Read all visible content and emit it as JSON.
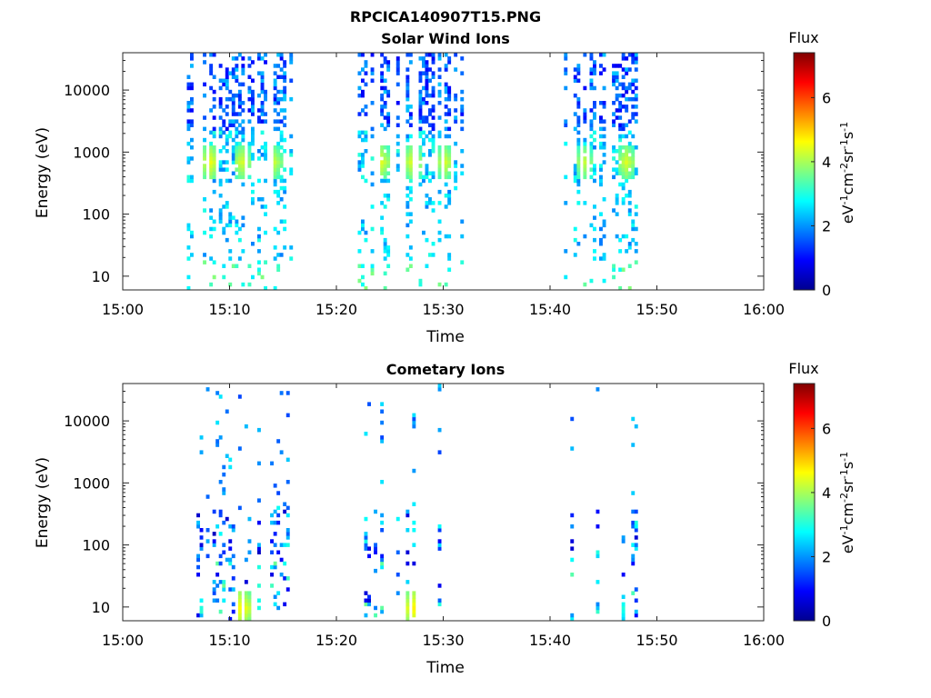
{
  "figure_title": "RPCICA140907T15.PNG",
  "colors": {
    "colormap": [
      "#00008f",
      "#0000ff",
      "#0080ff",
      "#00ffff",
      "#80ff80",
      "#ffff00",
      "#ff8000",
      "#ff0000",
      "#800000"
    ]
  },
  "chart_data": [
    {
      "type": "heatmap",
      "title": "Solar Wind Ions",
      "xlabel": "Time",
      "ylabel": "Energy (eV)",
      "x_ticks": [
        "15:00",
        "15:10",
        "15:20",
        "15:30",
        "15:40",
        "15:50",
        "16:00"
      ],
      "y_ticks": [
        "10",
        "100",
        "1000",
        "10000"
      ],
      "y_scale": "log",
      "xlim": [
        "15:00",
        "16:00"
      ],
      "ylim": [
        6,
        40000
      ],
      "colorbar": {
        "label": "Flux",
        "unit": "eV-1cm-2sr-1s-1",
        "ticks": [
          "0",
          "2",
          "4",
          "6"
        ],
        "range": [
          0,
          7.4
        ]
      },
      "active_intervals": [
        [
          "15:06",
          "15:16"
        ],
        [
          "15:22",
          "15:32"
        ],
        [
          "15:41",
          "15:48"
        ]
      ],
      "peaks": [
        {
          "time": "15:08",
          "energy": 650,
          "flux": 4.6
        },
        {
          "time": "15:11",
          "energy": 650,
          "flux": 4.4
        },
        {
          "time": "15:14",
          "energy": 650,
          "flux": 4.3
        },
        {
          "time": "15:24",
          "energy": 650,
          "flux": 4.5
        },
        {
          "time": "15:27",
          "energy": 650,
          "flux": 4.5
        },
        {
          "time": "15:30",
          "energy": 650,
          "flux": 4.4
        },
        {
          "time": "15:43",
          "energy": 650,
          "flux": 4.3
        },
        {
          "time": "15:47",
          "energy": 650,
          "flux": 4.4
        }
      ]
    },
    {
      "type": "heatmap",
      "title": "Cometary Ions",
      "xlabel": "Time",
      "ylabel": "Energy (eV)",
      "x_ticks": [
        "15:00",
        "15:10",
        "15:20",
        "15:30",
        "15:40",
        "15:50",
        "16:00"
      ],
      "y_ticks": [
        "10",
        "100",
        "1000",
        "10000"
      ],
      "y_scale": "log",
      "xlim": [
        "15:00",
        "16:00"
      ],
      "ylim": [
        6,
        40000
      ],
      "colorbar": {
        "label": "Flux",
        "unit": "eV-1cm-2sr-1s-1",
        "ticks": [
          "0",
          "2",
          "4",
          "6"
        ],
        "range": [
          0,
          7.4
        ]
      },
      "active_intervals": [
        [
          "15:06",
          "15:16"
        ],
        [
          "15:22",
          "15:32"
        ],
        [
          "15:41",
          "15:48"
        ]
      ],
      "peaks": [
        {
          "time": "15:11",
          "energy": 9,
          "flux": 4.8
        },
        {
          "time": "15:27",
          "energy": 9,
          "flux": 4.8
        },
        {
          "time": "15:46",
          "energy": 9,
          "flux": 3.6
        }
      ]
    }
  ]
}
